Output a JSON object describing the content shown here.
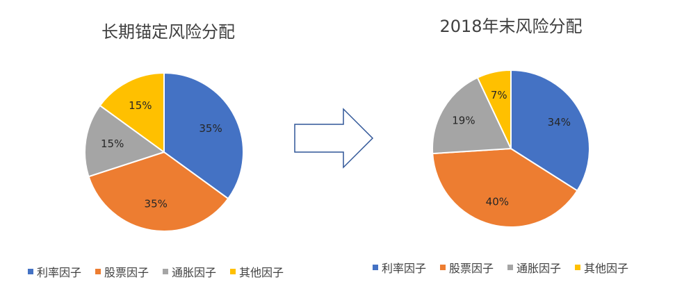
{
  "colors": {
    "rate": "#4472C4",
    "equity": "#ED7D31",
    "inflation": "#A5A5A5",
    "other": "#FFC000"
  },
  "chart_data": [
    {
      "type": "pie",
      "title": "长期锚定风险分配",
      "categories": [
        "利率因子",
        "股票因子",
        "通胀因子",
        "其他因子"
      ],
      "values": [
        35,
        35,
        15,
        15
      ],
      "labels": [
        "35%",
        "35%",
        "15%",
        "15%"
      ],
      "legend": "bottom"
    },
    {
      "type": "pie",
      "title": "2018年末风险分配",
      "categories": [
        "利率因子",
        "股票因子",
        "通胀因子",
        "其他因子"
      ],
      "values": [
        34,
        40,
        19,
        7
      ],
      "labels": [
        "34%",
        "40%",
        "19%",
        "7%"
      ],
      "legend": "bottom"
    }
  ]
}
